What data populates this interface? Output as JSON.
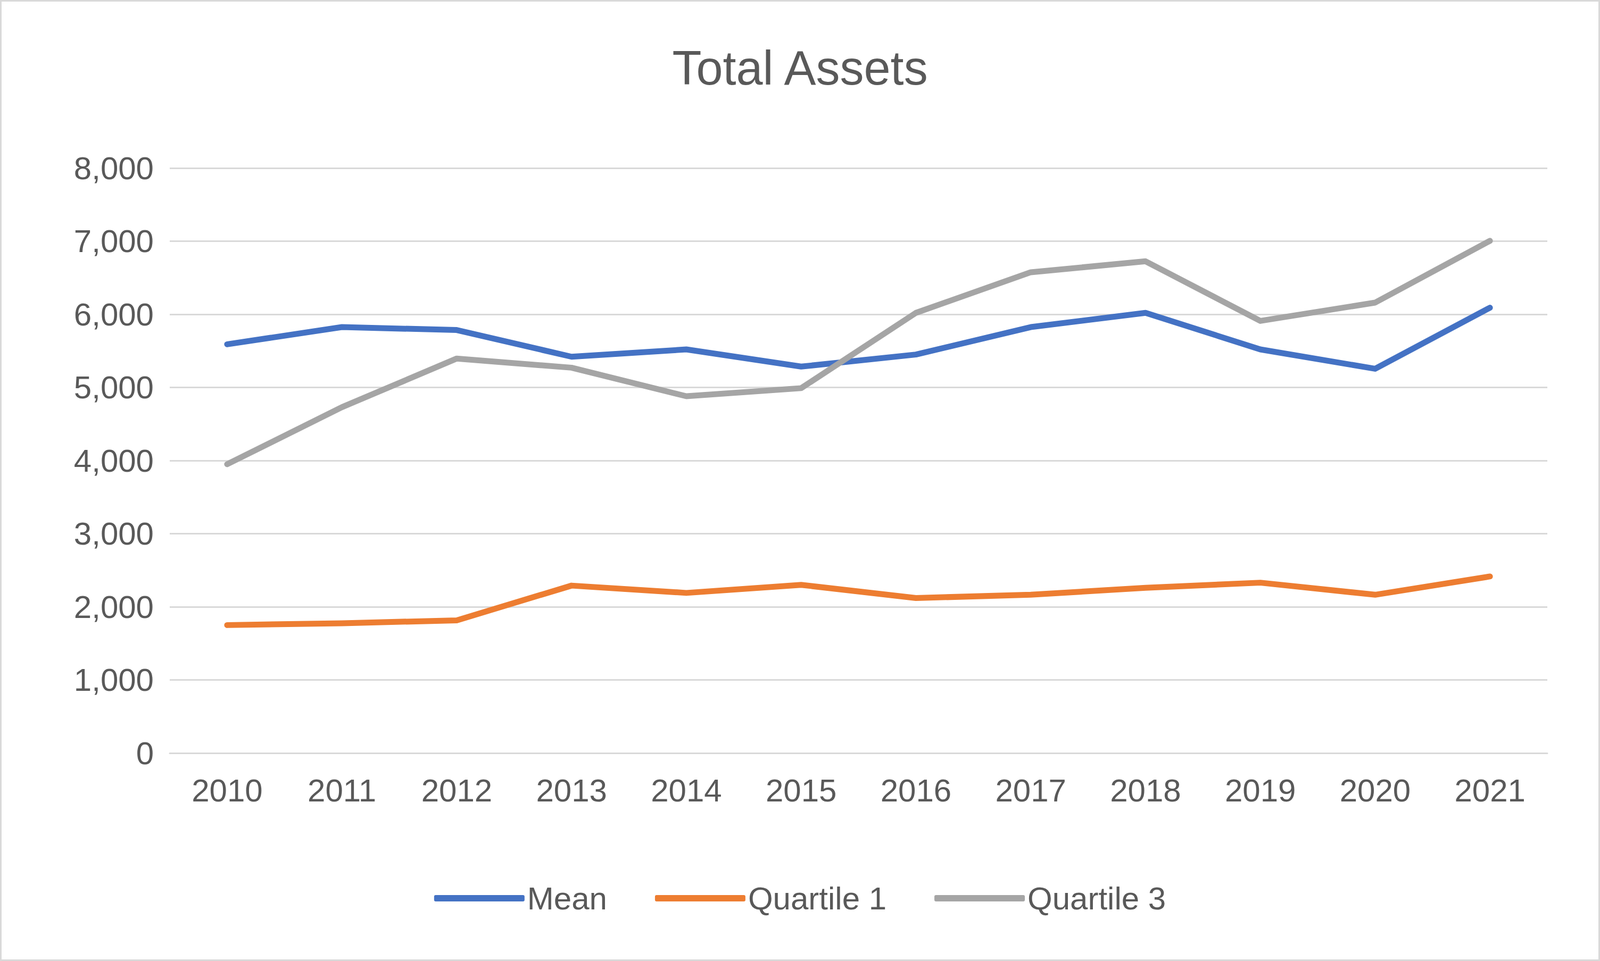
{
  "chart_data": {
    "type": "line",
    "title": "Total Assets",
    "categories": [
      "2010",
      "2011",
      "2012",
      "2013",
      "2014",
      "2015",
      "2016",
      "2017",
      "2018",
      "2019",
      "2020",
      "2021"
    ],
    "series": [
      {
        "name": "Mean",
        "color": "#4472c4",
        "values": [
          5590,
          5825,
          5785,
          5420,
          5520,
          5285,
          5450,
          5825,
          6020,
          5520,
          5255,
          6090
        ]
      },
      {
        "name": "Quartile 1",
        "color": "#ed7d31",
        "values": [
          1750,
          1775,
          1815,
          2290,
          2190,
          2300,
          2120,
          2165,
          2260,
          2330,
          2165,
          2415
        ]
      },
      {
        "name": "Quartile 3",
        "color": "#a5a5a5",
        "values": [
          3950,
          4730,
          5395,
          5270,
          4880,
          4990,
          6020,
          6575,
          6725,
          5910,
          6160,
          7005
        ]
      }
    ],
    "ylim": [
      0,
      8000
    ],
    "yticks": [
      0,
      {
        "value": 1000,
        "label": "1,000"
      },
      {
        "value": 2000,
        "label": "2,000"
      },
      {
        "value": 3000,
        "label": "3,000"
      },
      {
        "value": 4000,
        "label": "4,000"
      },
      {
        "value": 5000,
        "label": "5,000"
      },
      {
        "value": 6000,
        "label": "6,000"
      },
      {
        "value": 7000,
        "label": "7,000"
      },
      {
        "value": 8000,
        "label": "8,000"
      }
    ],
    "grid": true,
    "legend": "bottom",
    "marker": "none"
  }
}
